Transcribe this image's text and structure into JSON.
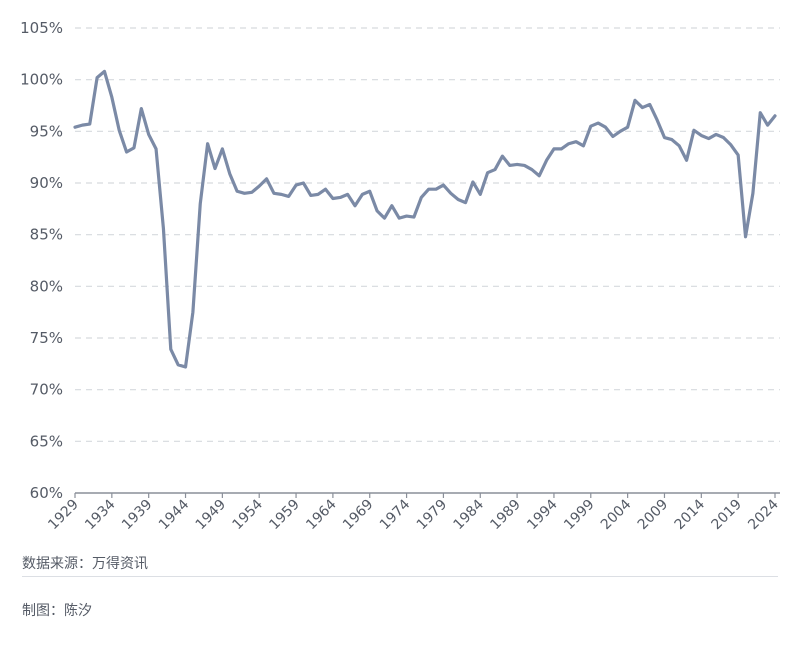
{
  "chart_data": {
    "type": "line",
    "title": "",
    "xlabel": "",
    "ylabel": "",
    "ylim": [
      60,
      105
    ],
    "xlim": [
      1929,
      2024
    ],
    "y_ticks": [
      "60%",
      "65%",
      "70%",
      "75%",
      "80%",
      "85%",
      "90%",
      "95%",
      "100%",
      "105%"
    ],
    "x_ticks": [
      "1929",
      "1934",
      "1939",
      "1944",
      "1949",
      "1954",
      "1959",
      "1964",
      "1969",
      "1974",
      "1979",
      "1984",
      "1989",
      "1994",
      "1999",
      "2004",
      "2009",
      "2014",
      "2019",
      "2024"
    ],
    "grid": true,
    "series": [
      {
        "color": "#7b8aa6",
        "x": [
          1929,
          1930,
          1931,
          1932,
          1933,
          1934,
          1935,
          1936,
          1937,
          1938,
          1939,
          1940,
          1941,
          1942,
          1943,
          1944,
          1945,
          1946,
          1947,
          1948,
          1949,
          1950,
          1951,
          1952,
          1953,
          1954,
          1955,
          1956,
          1957,
          1958,
          1959,
          1960,
          1961,
          1962,
          1963,
          1964,
          1965,
          1966,
          1967,
          1968,
          1969,
          1970,
          1971,
          1972,
          1973,
          1974,
          1975,
          1976,
          1977,
          1978,
          1979,
          1980,
          1981,
          1982,
          1983,
          1984,
          1985,
          1986,
          1987,
          1988,
          1989,
          1990,
          1991,
          1992,
          1993,
          1994,
          1995,
          1996,
          1997,
          1998,
          1999,
          2000,
          2001,
          2002,
          2003,
          2004,
          2005,
          2006,
          2007,
          2008,
          2009,
          2010,
          2011,
          2012,
          2013,
          2014,
          2015,
          2016,
          2017,
          2018,
          2019,
          2020,
          2021,
          2022,
          2023,
          2024
        ],
        "values": [
          95.4,
          95.6,
          95.7,
          100.2,
          100.8,
          98.3,
          95.1,
          93.0,
          93.4,
          97.2,
          94.7,
          93.3,
          85.6,
          73.9,
          72.4,
          72.2,
          77.5,
          88.0,
          93.8,
          91.4,
          93.3,
          90.9,
          89.2,
          89.0,
          89.1,
          89.7,
          90.4,
          89.0,
          88.9,
          88.7,
          89.8,
          90.0,
          88.8,
          88.9,
          89.4,
          88.5,
          88.6,
          88.9,
          87.8,
          88.9,
          89.2,
          87.3,
          86.6,
          87.8,
          86.6,
          86.8,
          86.7,
          88.6,
          89.4,
          89.4,
          89.8,
          89.0,
          88.4,
          88.1,
          90.1,
          88.9,
          91.0,
          91.3,
          92.6,
          91.7,
          91.8,
          91.7,
          91.3,
          90.7,
          92.2,
          93.3,
          93.3,
          93.8,
          94.0,
          93.6,
          95.5,
          95.8,
          95.4,
          94.5,
          95.0,
          95.4,
          98.0,
          97.3,
          97.6,
          96.1,
          94.4,
          94.2,
          93.6,
          92.2,
          95.1,
          94.6,
          94.3,
          94.7,
          94.4,
          93.7,
          92.7,
          84.8,
          89.0,
          96.8,
          95.6,
          96.5
        ]
      }
    ]
  },
  "footer": {
    "source": "数据来源：万得资讯",
    "credit": "制图：陈汐"
  }
}
